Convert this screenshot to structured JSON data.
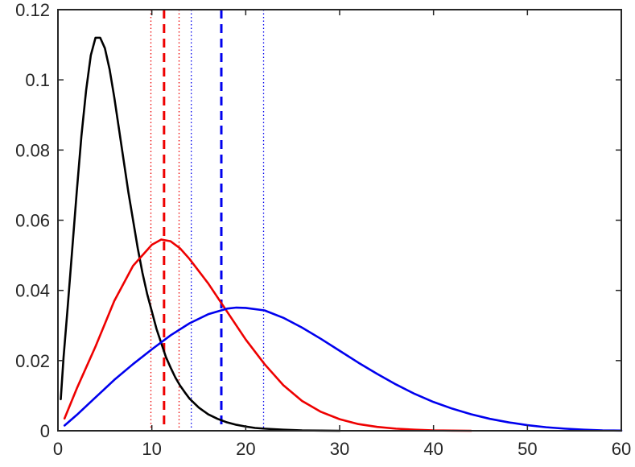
{
  "chart_data": {
    "type": "line",
    "title": "",
    "xlabel": "",
    "ylabel": "",
    "xlim": [
      0,
      60
    ],
    "ylim": [
      0,
      0.12
    ],
    "xticks": [
      0,
      10,
      20,
      30,
      40,
      50,
      60
    ],
    "xtick_labels": [
      "0",
      "10",
      "20",
      "30",
      "40",
      "50",
      "60"
    ],
    "yticks": [
      0,
      0.02,
      0.04,
      0.06,
      0.08,
      0.1,
      0.12
    ],
    "ytick_labels": [
      "0",
      "0.02",
      "0.04",
      "0.06",
      "0.08",
      "0.1",
      "0.12"
    ],
    "grid": false,
    "legend": "none",
    "series": [
      {
        "color": "#000000",
        "style": "solid",
        "x": [
          0.3,
          0.6,
          1,
          1.5,
          2,
          2.5,
          3,
          3.5,
          4,
          4.5,
          5,
          5.5,
          6,
          6.5,
          7,
          7.5,
          8,
          8.5,
          9,
          9.5,
          10,
          10.5,
          11,
          11.5,
          12,
          12.5,
          13,
          13.5,
          14,
          15,
          16,
          17,
          18,
          19,
          20,
          21,
          22,
          24,
          26,
          28,
          30
        ],
        "y": [
          0.009,
          0.021,
          0.034,
          0.051,
          0.068,
          0.084,
          0.097,
          0.107,
          0.112,
          0.112,
          0.109,
          0.103,
          0.095,
          0.086,
          0.077,
          0.068,
          0.06,
          0.052,
          0.045,
          0.039,
          0.034,
          0.029,
          0.025,
          0.021,
          0.018,
          0.0152,
          0.0129,
          0.011,
          0.0092,
          0.0066,
          0.0047,
          0.0034,
          0.0024,
          0.0017,
          0.0012,
          0.0008,
          0.0006,
          0.0003,
          0.0001,
          5e-05,
          0.0
        ]
      },
      {
        "color": "#ee0000",
        "style": "solid",
        "x": [
          0.7,
          2,
          4,
          6,
          8,
          10,
          11,
          12,
          13,
          14,
          16,
          18,
          20,
          22,
          24,
          26,
          28,
          30,
          32,
          34,
          36,
          38,
          40,
          42,
          44
        ],
        "y": [
          0.0035,
          0.012,
          0.024,
          0.037,
          0.047,
          0.053,
          0.0545,
          0.054,
          0.052,
          0.049,
          0.042,
          0.034,
          0.026,
          0.019,
          0.013,
          0.0085,
          0.0054,
          0.0033,
          0.0019,
          0.0011,
          0.0006,
          0.0003,
          0.0001,
          5e-05,
          0.0
        ]
      },
      {
        "color": "#0000ee",
        "style": "solid",
        "x": [
          0.7,
          2,
          4,
          6,
          8,
          10,
          12,
          14,
          16,
          18,
          19,
          20,
          22,
          24,
          26,
          28,
          30,
          32,
          34,
          36,
          38,
          40,
          42,
          44,
          46,
          48,
          50,
          52,
          54,
          56,
          58,
          60
        ],
        "y": [
          0.0015,
          0.0045,
          0.0095,
          0.0145,
          0.019,
          0.0232,
          0.0272,
          0.0306,
          0.0332,
          0.0348,
          0.0351,
          0.035,
          0.0343,
          0.0322,
          0.0294,
          0.0262,
          0.0228,
          0.0194,
          0.0162,
          0.0132,
          0.0105,
          0.0082,
          0.0063,
          0.0047,
          0.0034,
          0.0024,
          0.0016,
          0.001,
          0.0006,
          0.0003,
          0.0001,
          5e-05
        ]
      }
    ],
    "vlines": [
      {
        "x": 9.9,
        "color": "#ee0000",
        "style": "dotted"
      },
      {
        "x": 11.3,
        "color": "#ee0000",
        "style": "dashed"
      },
      {
        "x": 12.9,
        "color": "#ee0000",
        "style": "dotted"
      },
      {
        "x": 14.2,
        "color": "#0000ee",
        "style": "dotted"
      },
      {
        "x": 17.4,
        "color": "#0000ee",
        "style": "dashed"
      },
      {
        "x": 21.9,
        "color": "#0000ee",
        "style": "dotted"
      }
    ]
  }
}
